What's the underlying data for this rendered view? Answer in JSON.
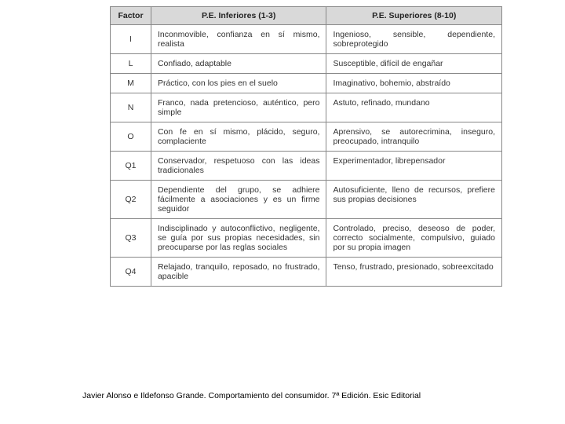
{
  "table": {
    "headers": {
      "factor": "Factor",
      "inferiores": "P.E. Inferiores (1-3)",
      "superiores": "P.E. Superiores (8-10)"
    },
    "header_bg": "#d9d9d9",
    "border_color": "#888888",
    "font_size_pt": 8,
    "rows": [
      {
        "factor": "I",
        "inferiores": "Inconmovible, confianza en sí mismo, realista",
        "superiores": "Ingenioso, sensible, dependiente, sobreprotegido"
      },
      {
        "factor": "L",
        "inferiores": "Confiado, adaptable",
        "superiores": "Susceptible, difícil de engañar"
      },
      {
        "factor": "M",
        "inferiores": "Práctico, con los pies en el suelo",
        "superiores": "Imaginativo, bohemio, abstraído"
      },
      {
        "factor": "N",
        "inferiores": "Franco, nada pretencioso, auténtico, pero simple",
        "superiores": "Astuto, refinado, mundano"
      },
      {
        "factor": "O",
        "inferiores": "Con fe en sí mismo, plácido, seguro, complaciente",
        "superiores": "Aprensivo, se autorecrimina, inseguro, preocupado, intranquilo"
      },
      {
        "factor": "Q1",
        "inferiores": "Conservador, respetuoso con las ideas tradicionales",
        "superiores": "Experimentador, librepensador"
      },
      {
        "factor": "Q2",
        "inferiores": "Dependiente del grupo, se adhiere fácilmente a asociaciones y es un firme seguidor",
        "superiores": "Autosuficiente, lleno de recursos, prefiere sus propias decisiones"
      },
      {
        "factor": "Q3",
        "inferiores": "Indisciplinado y autoconflictivo, negligente, se guía por sus propias necesidades, sin preocuparse por las reglas sociales",
        "superiores": "Controlado, preciso, deseoso de poder, correcto socialmente, compulsivo, guiado por su propia imagen"
      },
      {
        "factor": "Q4",
        "inferiores": "Relajado, tranquilo, reposado, no frustrado, apacible",
        "superiores": "Tenso, frustrado, presionado, sobreexcitado"
      }
    ]
  },
  "caption": "Javier Alonso e Ildefonso Grande. Comportamiento del consumidor. 7ª Edición. Esic Editorial"
}
